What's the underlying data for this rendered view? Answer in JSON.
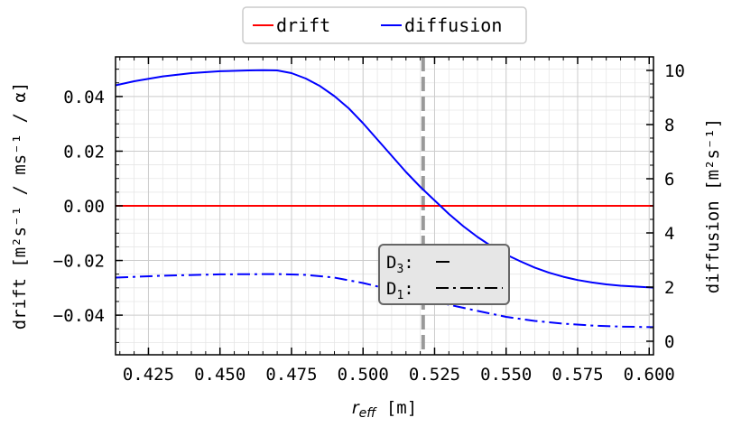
{
  "chart_data": {
    "type": "line",
    "x_axis": {
      "label_main": "r",
      "label_sub": "eff",
      "label_unit": " [m]",
      "range": [
        0.4135,
        0.6015
      ],
      "ticks": [
        0.425,
        0.45,
        0.475,
        0.5,
        0.525,
        0.55,
        0.575,
        0.6
      ],
      "tick_labels": [
        "0.425",
        "0.450",
        "0.475",
        "0.500",
        "0.525",
        "0.550",
        "0.575",
        "0.600"
      ]
    },
    "y_left": {
      "label": "drift [m²s⁻¹ / ms⁻¹ / α]",
      "range": [
        -0.0545,
        0.0545
      ],
      "ticks": [
        -0.04,
        -0.02,
        0.0,
        0.02,
        0.04
      ],
      "tick_labels": [
        "−0.04",
        "−0.02",
        "0.00",
        "0.02",
        "0.04"
      ]
    },
    "y_right": {
      "label": "diffusion [m²s⁻¹]",
      "range": [
        -0.5,
        10.5
      ],
      "ticks": [
        0,
        2,
        4,
        6,
        8,
        10
      ],
      "tick_labels": [
        "0",
        "2",
        "4",
        "6",
        "8",
        "10"
      ]
    },
    "grid": true,
    "legend_position": "top-center",
    "series": [
      {
        "name": "drift",
        "axis": "left",
        "color": "#ff0000",
        "style": "solid",
        "x": [
          0.4135,
          0.45,
          0.5,
          0.55,
          0.6015
        ],
        "y": [
          0.0,
          0.0,
          0.0,
          0.0,
          0.0
        ]
      },
      {
        "name": "diffusion",
        "axis": "right",
        "color": "#0000ff",
        "style": "solid",
        "x": [
          0.4135,
          0.42,
          0.43,
          0.44,
          0.45,
          0.46,
          0.465,
          0.47,
          0.475,
          0.48,
          0.485,
          0.49,
          0.495,
          0.5,
          0.505,
          0.51,
          0.515,
          0.52,
          0.525,
          0.53,
          0.535,
          0.54,
          0.545,
          0.55,
          0.555,
          0.56,
          0.565,
          0.57,
          0.575,
          0.58,
          0.585,
          0.59,
          0.595,
          0.6015
        ],
        "y": [
          9.45,
          9.6,
          9.78,
          9.9,
          9.97,
          10.0,
          10.01,
          10.0,
          9.9,
          9.7,
          9.42,
          9.05,
          8.6,
          8.05,
          7.45,
          6.85,
          6.25,
          5.7,
          5.2,
          4.7,
          4.25,
          3.85,
          3.5,
          3.2,
          2.95,
          2.72,
          2.53,
          2.38,
          2.26,
          2.17,
          2.1,
          2.05,
          2.02,
          1.98
        ]
      },
      {
        "name": "diffusion D1",
        "axis": "right",
        "color": "#0000ff",
        "style": "dashdot",
        "x": [
          0.4135,
          0.43,
          0.45,
          0.47,
          0.48,
          0.49,
          0.5,
          0.51,
          0.52,
          0.53,
          0.54,
          0.55,
          0.56,
          0.57,
          0.58,
          0.59,
          0.6015
        ],
        "y": [
          2.35,
          2.42,
          2.47,
          2.48,
          2.45,
          2.35,
          2.15,
          1.9,
          1.6,
          1.35,
          1.12,
          0.9,
          0.75,
          0.65,
          0.58,
          0.54,
          0.52
        ]
      }
    ],
    "vline": {
      "x": 0.521,
      "color": "#999999",
      "style": "dashed"
    },
    "inset_legend": {
      "position": "lower-center",
      "entries": [
        {
          "label_main": "D",
          "label_sub": "3",
          "label_suffix": ":",
          "style": "solid"
        },
        {
          "label_main": "D",
          "label_sub": "1",
          "label_suffix": ":",
          "style": "dashdot"
        }
      ]
    }
  }
}
